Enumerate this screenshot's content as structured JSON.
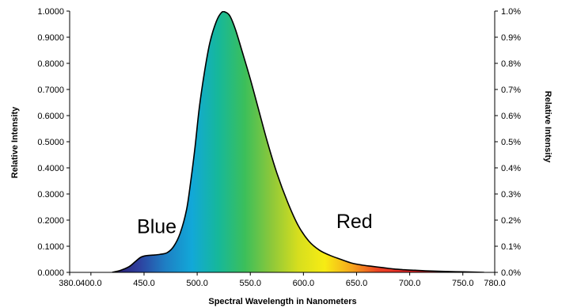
{
  "chart_data": {
    "type": "area",
    "title": "",
    "xlabel": "Spectral Wavelength in Nanometers",
    "ylabel_left": "Relative Intensity",
    "ylabel_right": "Relative Intensity",
    "xlim": [
      380,
      780
    ],
    "ylim": [
      0,
      1
    ],
    "x_ticks": [
      {
        "value": 380,
        "label": "380.0"
      },
      {
        "value": 400,
        "label": "400.0"
      },
      {
        "value": 450,
        "label": "450.0"
      },
      {
        "value": 500,
        "label": "500.0"
      },
      {
        "value": 550,
        "label": "550.0"
      },
      {
        "value": 600,
        "label": "600.0"
      },
      {
        "value": 650,
        "label": "650.0"
      },
      {
        "value": 700,
        "label": "700.0"
      },
      {
        "value": 750,
        "label": "750.0"
      },
      {
        "value": 780,
        "label": "780.0"
      }
    ],
    "y_ticks_left": [
      {
        "value": 0.0,
        "label": "0.0000"
      },
      {
        "value": 0.1,
        "label": "0.1000"
      },
      {
        "value": 0.2,
        "label": "0.2000"
      },
      {
        "value": 0.3,
        "label": "0.3000"
      },
      {
        "value": 0.4,
        "label": "0.4000"
      },
      {
        "value": 0.5,
        "label": "0.5000"
      },
      {
        "value": 0.6,
        "label": "0.6000"
      },
      {
        "value": 0.7,
        "label": "0.7000"
      },
      {
        "value": 0.8,
        "label": "0.8000"
      },
      {
        "value": 0.9,
        "label": "0.9000"
      },
      {
        "value": 1.0,
        "label": "1.0000"
      }
    ],
    "y_ticks_right": [
      {
        "value": 0.0,
        "label": "0.0%"
      },
      {
        "value": 0.1,
        "label": "0.1%"
      },
      {
        "value": 0.2,
        "label": "0.2%"
      },
      {
        "value": 0.3,
        "label": "0.3%"
      },
      {
        "value": 0.4,
        "label": "0.4%"
      },
      {
        "value": 0.5,
        "label": "0.5%"
      },
      {
        "value": 0.6,
        "label": "0.6%"
      },
      {
        "value": 0.7,
        "label": "0.7%"
      },
      {
        "value": 0.8,
        "label": "0.8%"
      },
      {
        "value": 0.9,
        "label": "0.9%"
      },
      {
        "value": 1.0,
        "label": "1.0%"
      }
    ],
    "grid": false,
    "series": [
      {
        "x": [
          420,
          428,
          436,
          442,
          447,
          452,
          458,
          465,
          472,
          478,
          484,
          490,
          494,
          498,
          502,
          507,
          512,
          518,
          523,
          527,
          531,
          536,
          542,
          550,
          558,
          566,
          575,
          585,
          595,
          605,
          615,
          625,
          635,
          645,
          655,
          665,
          675,
          685,
          695,
          705,
          715,
          730,
          750,
          770
        ],
        "y": [
          0.0,
          0.008,
          0.022,
          0.042,
          0.058,
          0.064,
          0.066,
          0.069,
          0.076,
          0.1,
          0.15,
          0.24,
          0.35,
          0.48,
          0.63,
          0.77,
          0.88,
          0.96,
          0.995,
          0.995,
          0.98,
          0.93,
          0.85,
          0.74,
          0.62,
          0.5,
          0.38,
          0.27,
          0.18,
          0.12,
          0.085,
          0.065,
          0.05,
          0.036,
          0.028,
          0.023,
          0.018,
          0.013,
          0.01,
          0.008,
          0.006,
          0.004,
          0.002,
          0.0
        ]
      }
    ],
    "annotations": [
      {
        "text": "Blue",
        "x": 462,
        "y": 0.15
      },
      {
        "text": "Red",
        "x": 648,
        "y": 0.17
      }
    ],
    "colors": {
      "stroke": "#000000",
      "gradient": [
        "#2a1a6e",
        "#2e3f9e",
        "#1e7fc4",
        "#12a8d8",
        "#16b89a",
        "#3cbf5a",
        "#8dc83a",
        "#d6de1e",
        "#f7ec14",
        "#f6a81c",
        "#ec4424",
        "#e52a2a",
        "#d8161e"
      ]
    }
  }
}
